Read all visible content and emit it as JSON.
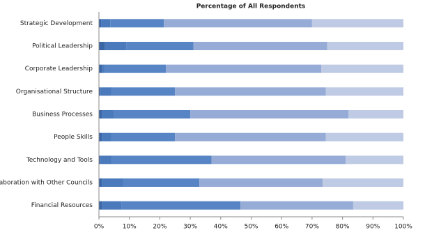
{
  "chart_data": {
    "type": "stacked-bar-horizontal",
    "title": "Percentage of All Respondents",
    "categories": [
      "Strategic Development",
      "Political Leadership",
      "Corporate Leadership",
      "Organisational Structure",
      "Business Processes",
      "People Skills",
      "Technology and Tools",
      "Collaboration with Other Councils",
      "Financial Resources"
    ],
    "series": [
      {
        "color": "#3b66a6",
        "values": [
          0.7,
          2,
          1,
          0.5,
          1,
          1,
          0.5,
          1,
          1
        ]
      },
      {
        "color": "#4a79bc",
        "values": [
          3.0,
          7,
          1,
          3.5,
          4,
          3,
          3.5,
          7,
          6.5
        ]
      },
      {
        "color": "#5784c4",
        "values": [
          17.6,
          22,
          20,
          21,
          25,
          21,
          33,
          25,
          39
        ]
      },
      {
        "color": "#96acd6",
        "values": [
          48.7,
          44,
          51,
          49.5,
          52,
          49.5,
          44,
          40.5,
          37
        ]
      },
      {
        "color": "#bfcae4",
        "values": [
          30.0,
          25,
          27,
          25.5,
          18,
          25.5,
          19,
          26.5,
          16.5
        ]
      }
    ],
    "xlim": [
      0,
      100
    ],
    "xticks": [
      {
        "value": 0,
        "label": "0%"
      },
      {
        "value": 10,
        "label": "10%"
      },
      {
        "value": 20,
        "label": "20%"
      },
      {
        "value": 30,
        "label": "30%"
      },
      {
        "value": 40,
        "label": "40%"
      },
      {
        "value": 50,
        "label": "50%"
      },
      {
        "value": 60,
        "label": "60%"
      },
      {
        "value": 70,
        "label": "70%"
      },
      {
        "value": 80,
        "label": "80%"
      },
      {
        "value": 90,
        "label": "90%"
      },
      {
        "value": 100,
        "label": "100%"
      }
    ],
    "grid": false
  }
}
